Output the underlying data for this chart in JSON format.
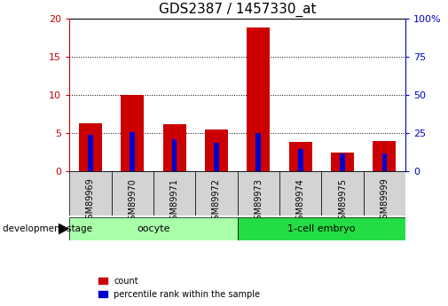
{
  "title": "GDS2387 / 1457330_at",
  "samples": [
    "GSM89969",
    "GSM89970",
    "GSM89971",
    "GSM89972",
    "GSM89973",
    "GSM89974",
    "GSM89975",
    "GSM89999"
  ],
  "count_values": [
    6.3,
    10.0,
    6.2,
    5.5,
    18.8,
    3.9,
    2.5,
    4.0
  ],
  "percentile_values": [
    24,
    25.5,
    21,
    18.5,
    25,
    14.5,
    11.5,
    11.5
  ],
  "groups": [
    {
      "label": "oocyte",
      "start": 0,
      "end": 4,
      "color": "#AAFFAA"
    },
    {
      "label": "1-cell embryo",
      "start": 4,
      "end": 8,
      "color": "#22DD44"
    }
  ],
  "group_label": "development stage",
  "ylim_left": [
    0,
    20
  ],
  "ylim_right": [
    0,
    100
  ],
  "yticks_left": [
    0,
    5,
    10,
    15,
    20
  ],
  "yticks_right": [
    0,
    25,
    50,
    75,
    100
  ],
  "bar_color_red": "#CC0000",
  "bar_color_blue": "#0000CC",
  "bar_width": 0.55,
  "blue_bar_width": 0.12,
  "grid_color": "black",
  "title_fontsize": 11,
  "tick_label_fontsize": 7,
  "legend_count_label": "count",
  "legend_percentile_label": "percentile rank within the sample",
  "left_axis_color": "#CC0000",
  "right_axis_color": "#0000CC",
  "background_color": "#ffffff",
  "plot_bg_color": "#ffffff",
  "xticklabel_bg": "#d3d3d3"
}
